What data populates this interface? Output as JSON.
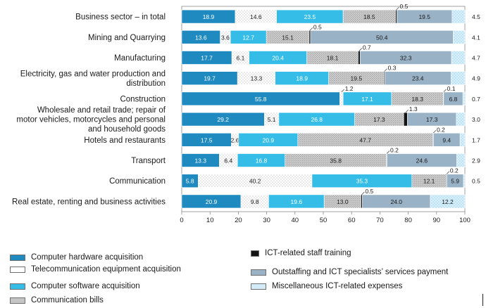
{
  "chart_data": {
    "type": "bar",
    "orientation": "horizontal",
    "stacked": true,
    "title": "",
    "xlabel": "",
    "ylabel": "",
    "xlim": [
      0,
      100
    ],
    "xticks": [
      "0",
      "10",
      "20",
      "30",
      "40",
      "50",
      "60",
      "70",
      "80",
      "90",
      "100"
    ],
    "grid": false,
    "legend_position": "bottom",
    "categories": [
      [
        "Business sector – in total"
      ],
      [
        "Mining and Quarrying"
      ],
      [
        "Manufacturing"
      ],
      [
        "Electricity, gas and water production and",
        "distribution"
      ],
      [
        "Construction"
      ],
      [
        "Wholesale and retail trade; repair of",
        "motor vehicles, motorcycles and personal",
        "and household goods"
      ],
      [
        "Hotels and restaurants"
      ],
      [
        "Transport"
      ],
      [
        "Communication"
      ],
      [
        "Real estate, renting and business activities"
      ]
    ],
    "series": [
      {
        "name": "Computer hardware acquisition",
        "color": "#1f8ac0",
        "pattern": "solid",
        "values": [
          18.9,
          13.6,
          17.7,
          19.7,
          55.8,
          29.2,
          17.5,
          13.3,
          5.8,
          20.9
        ]
      },
      {
        "name": "Telecommunication equipment acquisition",
        "color": "#ffffff",
        "pattern": "dots-light",
        "values": [
          14.6,
          3.6,
          6.1,
          13.3,
          1.2,
          5.1,
          2.6,
          6.4,
          40.2,
          9.8
        ]
      },
      {
        "name": "Computer software acquisition",
        "color": "#35bde8",
        "pattern": "solid",
        "values": [
          23.5,
          12.7,
          20.4,
          18.9,
          17.1,
          26.8,
          20.9,
          16.8,
          35.3,
          19.6
        ]
      },
      {
        "name": "Communication bills",
        "color": "#c6c6c6",
        "pattern": "dots-dark",
        "values": [
          18.5,
          15.1,
          18.1,
          19.5,
          18.3,
          17.3,
          47.7,
          35.8,
          12.1,
          13.0
        ]
      },
      {
        "name": "ICT-related staff training",
        "color": "#141414",
        "pattern": "solid",
        "values": [
          0.5,
          0.5,
          0.7,
          0.3,
          0.1,
          1.3,
          0.2,
          0.2,
          0.2,
          0.5
        ]
      },
      {
        "name": "Outstaffing and ICT specialists’ services payment",
        "color": "#9ab2c6",
        "pattern": "solid",
        "values": [
          19.5,
          50.4,
          32.3,
          23.4,
          6.8,
          17.3,
          9.4,
          24.6,
          5.9,
          24.0
        ]
      },
      {
        "name": "Miscellaneous ICT-related expenses",
        "color": "#d3ecf8",
        "pattern": "dots-blue",
        "values": [
          4.5,
          4.1,
          4.7,
          4.9,
          0.7,
          3.0,
          1.7,
          2.9,
          0.5,
          12.2
        ]
      }
    ],
    "segment_labels": [
      [
        "18.9",
        "14.6",
        "23.5",
        "18.5",
        "0.5",
        "19.5",
        "4.5"
      ],
      [
        "13.6",
        "3.6",
        "12.7",
        "15.1",
        "0.5",
        "50.4",
        "4.1"
      ],
      [
        "17.7",
        "6.1",
        "20.4",
        "18.1",
        "0.7",
        "32.3",
        "4.7"
      ],
      [
        "19.7",
        "13.3",
        "18.9",
        "19.5",
        "0.3",
        "23.4",
        "4.9"
      ],
      [
        "55.8",
        "1.2",
        "17.1",
        "18.3",
        "0.1",
        "6.8",
        "0.7"
      ],
      [
        "29.2",
        "5.1",
        "26.8",
        "17.3",
        "1.3",
        "17.3",
        "3.0"
      ],
      [
        "17.5",
        "2.6",
        "20.9",
        "47.7",
        "0.2",
        "9.4",
        "1.7"
      ],
      [
        "13.3",
        "6.4",
        "16.8",
        "35.8",
        "0.2",
        "24.6",
        "2.9"
      ],
      [
        "5.8",
        "40.2",
        "35.3",
        "12.1",
        "0.2",
        "5.9",
        "0.5"
      ],
      [
        "20.9",
        "9.8",
        "19.6",
        "13.0",
        "0.5",
        "24.0",
        "12.2"
      ]
    ]
  }
}
